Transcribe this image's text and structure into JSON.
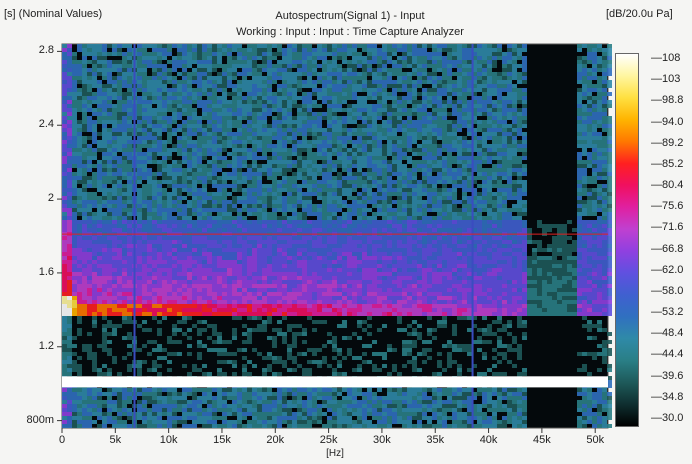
{
  "header": {
    "y_axis_caption": "[s] (Nominal Values)",
    "title": "Autospectrum(Signal 1) - Input",
    "subtitle": "Working : Input : Input : Time Capture Analyzer",
    "colorbar_unit": "[dB/20.0u Pa]"
  },
  "chart_data": {
    "type": "heatmap",
    "title": "Autospectrum(Signal 1) - Input",
    "subtitle": "Working : Input : Input : Time Capture Analyzer",
    "xlabel": "[Hz]",
    "ylabel": "[s] (Nominal Values)",
    "x_ticks": [
      "0",
      "5k",
      "10k",
      "15k",
      "20k",
      "25k",
      "30k",
      "35k",
      "40k",
      "45k",
      "50k"
    ],
    "x_tick_values": [
      0,
      5000,
      10000,
      15000,
      20000,
      25000,
      30000,
      35000,
      40000,
      45000,
      50000
    ],
    "y_ticks": [
      "800m",
      "1.2",
      "1.6",
      "2",
      "2.4",
      "2.8"
    ],
    "y_tick_values": [
      0.8,
      1.2,
      1.6,
      2.0,
      2.4,
      2.8
    ],
    "xlim": [
      0,
      51200
    ],
    "ylim": [
      0.76,
      2.84
    ],
    "colorbar": {
      "unit": "[dB/20.0u Pa]",
      "labels": [
        "108",
        "103",
        "98.8",
        "94.0",
        "89.2",
        "85.2",
        "80.4",
        "75.6",
        "71.6",
        "66.8",
        "62.0",
        "58.0",
        "53.2",
        "48.4",
        "44.4",
        "39.6",
        "34.8",
        "30.0"
      ],
      "values": [
        108,
        103,
        98.8,
        94.0,
        89.2,
        85.2,
        80.4,
        75.6,
        71.6,
        66.8,
        62.0,
        58.0,
        53.2,
        48.4,
        44.4,
        39.6,
        34.8,
        30.0
      ],
      "colors": [
        "#ffffff",
        "#fff6a0",
        "#ffe040",
        "#ffb400",
        "#ff7800",
        "#ff2020",
        "#f01060",
        "#e020a0",
        "#c040d0",
        "#9040e0",
        "#6050e0",
        "#4060d0",
        "#3070c0",
        "#2f8aa8",
        "#2a7f86",
        "#1e5a5a",
        "#0f2f30",
        "#000000"
      ]
    },
    "cursor_line_y": 1.81,
    "white_gap_y": [
      0.98,
      1.04
    ],
    "event_band_y": [
      1.37,
      1.9
    ],
    "quiet_band_x": [
      43500,
      48000
    ],
    "vertical_lines_x": [
      6800,
      38500
    ]
  }
}
